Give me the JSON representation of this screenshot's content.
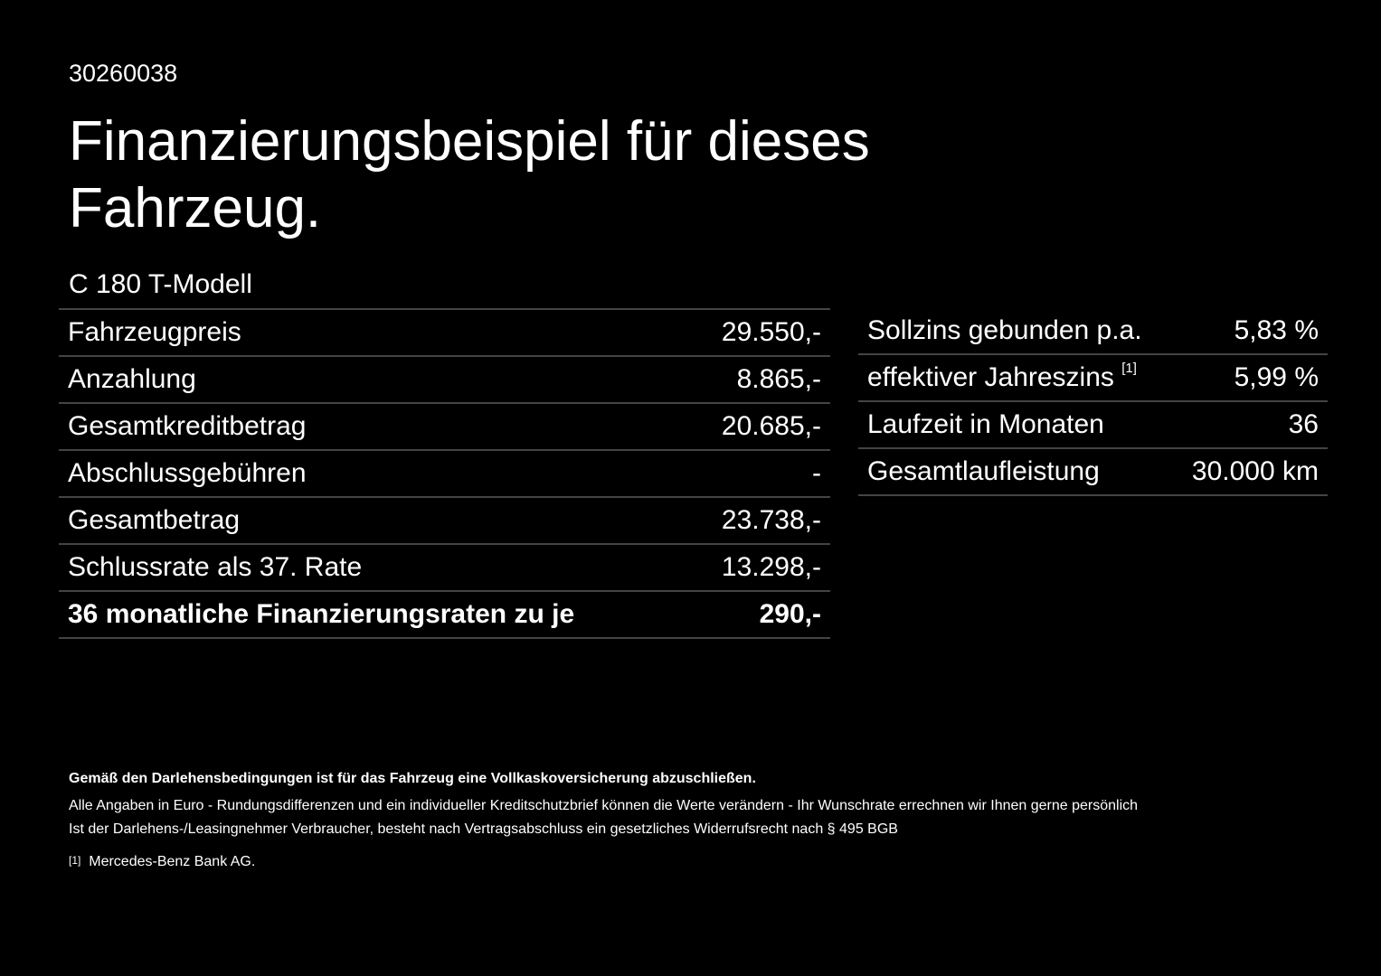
{
  "header": {
    "id": "30260038",
    "title_line1": "Finanzierungsbeispiel für dieses",
    "title_line2": "Fahrzeug."
  },
  "model": "C 180 T-Modell",
  "left_table": {
    "rows": [
      [
        "Fahrzeugpreis",
        "29.550,-"
      ],
      [
        "Anzahlung",
        "8.865,-"
      ],
      [
        "Gesamtkreditbetrag",
        "20.685,-"
      ],
      [
        "Abschlussgebühren",
        "-"
      ],
      [
        "Gesamtbetrag",
        "23.738,-"
      ],
      [
        "Schlussrate als 37. Rate",
        "13.298,-"
      ],
      [
        "36 monatliche Finanzierungsraten zu je",
        "290,-"
      ]
    ]
  },
  "right_table": {
    "rows": [
      [
        "Sollzins gebunden p.a.",
        "5,83 %"
      ],
      [
        "effektiver Jahreszins",
        "5,99 %"
      ],
      [
        "Laufzeit in Monaten",
        "36"
      ],
      [
        "Gesamtlaufleistung",
        "30.000 km"
      ]
    ],
    "footnote_ref": "[1]"
  },
  "footer": {
    "bold": "Gemäß den Darlehensbedingungen ist für das Fahrzeug eine Vollkaskoversicherung abzuschließen.",
    "line1": "Alle Angaben in Euro - Rundungsdifferenzen und ein individueller Kreditschutzbrief können die Werte verändern - Ihr Wunschrate errechnen wir Ihnen gerne persönlich",
    "line2": "Ist der Darlehens-/Leasingnehmer Verbraucher, besteht nach Vertragsabschluss ein gesetzliches Widerrufsrecht nach § 495 BGB",
    "note_ref": "[1]",
    "note_text": "Mercedes-Benz Bank AG."
  }
}
